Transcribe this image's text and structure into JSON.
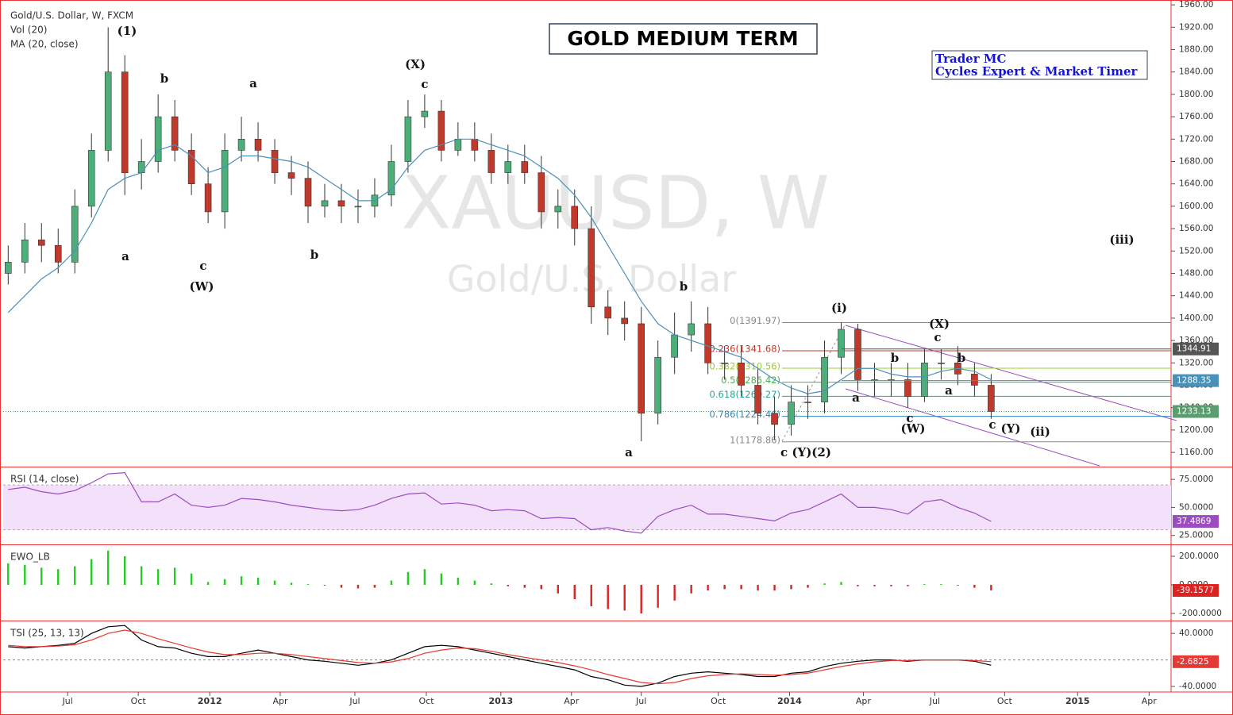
{
  "header": {
    "symbol": "Gold/U.S. Dollar, W, FXCM",
    "volume": "Vol (20)"
  },
  "watermark": {
    "symbol": "XAUUSD, W",
    "name": "Gold/U.S. Dollar"
  },
  "chart_data": [
    {
      "type": "candlestick",
      "title": "GOLD MEDIUM TERM",
      "credit": [
        "Trader MC",
        "Cycles Expert & Market Timer"
      ],
      "up_color": "#4caf7a",
      "down_color": "#c0392b",
      "open": [
        1480,
        1500,
        1540,
        1530,
        1500,
        1600,
        1700,
        1840,
        1660,
        1680,
        1760,
        1700,
        1640,
        1590,
        1700,
        1720,
        1700,
        1660,
        1650,
        1600,
        1610,
        1600,
        1600,
        1620,
        1680,
        1760,
        1770,
        1700,
        1720,
        1700,
        1660,
        1680,
        1660,
        1590,
        1600,
        1560,
        1420,
        1400,
        1390,
        1230,
        1330,
        1370,
        1390,
        1320,
        1320,
        1280,
        1230,
        1210,
        1250,
        1250,
        1330,
        1380,
        1290,
        1290,
        1290,
        1260,
        1320,
        1320,
        1300,
        1280
      ],
      "high": [
        1530,
        1570,
        1570,
        1560,
        1630,
        1730,
        1920,
        1870,
        1720,
        1800,
        1790,
        1730,
        1670,
        1730,
        1760,
        1750,
        1720,
        1690,
        1680,
        1640,
        1640,
        1630,
        1650,
        1710,
        1790,
        1800,
        1790,
        1750,
        1750,
        1730,
        1710,
        1710,
        1690,
        1630,
        1630,
        1600,
        1450,
        1430,
        1420,
        1360,
        1410,
        1430,
        1420,
        1350,
        1350,
        1310,
        1260,
        1280,
        1280,
        1360,
        1392,
        1390,
        1320,
        1320,
        1320,
        1345,
        1345,
        1350,
        1320,
        1300
      ],
      "low": [
        1460,
        1480,
        1500,
        1480,
        1480,
        1580,
        1680,
        1620,
        1630,
        1660,
        1680,
        1620,
        1570,
        1560,
        1680,
        1680,
        1640,
        1620,
        1570,
        1580,
        1570,
        1570,
        1580,
        1600,
        1660,
        1740,
        1680,
        1690,
        1680,
        1640,
        1640,
        1640,
        1560,
        1560,
        1530,
        1390,
        1370,
        1360,
        1180,
        1210,
        1300,
        1340,
        1300,
        1290,
        1260,
        1210,
        1182,
        1190,
        1220,
        1230,
        1300,
        1270,
        1260,
        1260,
        1240,
        1250,
        1290,
        1280,
        1260,
        1220
      ],
      "close": [
        1500,
        1540,
        1530,
        1500,
        1600,
        1700,
        1840,
        1660,
        1680,
        1760,
        1700,
        1640,
        1590,
        1700,
        1720,
        1700,
        1660,
        1650,
        1600,
        1610,
        1600,
        1600,
        1620,
        1680,
        1760,
        1770,
        1700,
        1720,
        1700,
        1660,
        1680,
        1660,
        1590,
        1600,
        1560,
        1420,
        1400,
        1390,
        1230,
        1330,
        1370,
        1390,
        1320,
        1320,
        1280,
        1230,
        1210,
        1250,
        1250,
        1330,
        1380,
        1290,
        1290,
        1290,
        1260,
        1320,
        1320,
        1300,
        1280,
        1233.13
      ],
      "close_color": "#5a9e6f",
      "series": [
        {
          "name": "MA (20, close)",
          "color": "#4a90b8",
          "values": [
            1410,
            1440,
            1470,
            1490,
            1520,
            1570,
            1630,
            1650,
            1660,
            1700,
            1710,
            1690,
            1660,
            1670,
            1690,
            1690,
            1685,
            1680,
            1670,
            1650,
            1630,
            1610,
            1610,
            1630,
            1670,
            1700,
            1710,
            1720,
            1720,
            1710,
            1700,
            1690,
            1670,
            1650,
            1620,
            1580,
            1530,
            1480,
            1430,
            1390,
            1370,
            1360,
            1350,
            1340,
            1330,
            1310,
            1290,
            1275,
            1265,
            1270,
            1290,
            1310,
            1310,
            1300,
            1295,
            1295,
            1305,
            1310,
            1305,
            1290
          ]
        }
      ],
      "price_levels": [
        1344.91,
        1288.35
      ],
      "price_level_colors": [
        "#555555",
        "#4a90b8"
      ],
      "fib_levels": [
        {
          "value": 1391.97,
          "label": "0(1391.97)"
        },
        {
          "value": 1341.68,
          "label": "0.236(1341.68)"
        },
        {
          "value": 1310.56,
          "label": "0.382(1310.56)"
        },
        {
          "value": 1285.42,
          "label": "0.5(1285.42)"
        },
        {
          "value": 1260.27,
          "label": "0.618(1260.27)"
        },
        {
          "value": 1224.46,
          "label": "0.786(1224.46)"
        },
        {
          "value": 1178.86,
          "label": "1(1178.86)"
        }
      ],
      "fib_colors": [
        "#888888",
        "#c0392b",
        "#9acd32",
        "#4caf50",
        "#26a69a",
        "#2e86c1",
        "#888888"
      ],
      "annotations": [
        "(1)",
        "b",
        "a",
        "(X)",
        "c",
        "a",
        "c",
        "(W)",
        "b",
        "b",
        "a",
        "(i)",
        "(X)",
        "c",
        "b",
        "b",
        "a",
        "a",
        "c",
        "(W)",
        "c",
        "(Y)",
        "(ii)",
        "c (Y)(2)",
        "(iii)"
      ],
      "ylim": [
        1136,
        1963
      ],
      "yticks": [
        {
          "value": 1160,
          "label": "1160.00"
        },
        {
          "value": 1200,
          "label": "1200.00"
        },
        {
          "value": 1240,
          "label": "1240.00"
        },
        {
          "value": 1280,
          "label": "1280.00"
        },
        {
          "value": 1320,
          "label": "1320.00"
        },
        {
          "value": 1360,
          "label": "1360.00"
        },
        {
          "value": 1400,
          "label": "1400.00"
        },
        {
          "value": 1440,
          "label": "1440.00"
        },
        {
          "value": 1480,
          "label": "1480.00"
        },
        {
          "value": 1520,
          "label": "1520.00"
        },
        {
          "value": 1560,
          "label": "1560.00"
        },
        {
          "value": 1600,
          "label": "1600.00"
        },
        {
          "value": 1640,
          "label": "1640.00"
        },
        {
          "value": 1680,
          "label": "1680.00"
        },
        {
          "value": 1720,
          "label": "1720.00"
        },
        {
          "value": 1760,
          "label": "1760.00"
        },
        {
          "value": 1800,
          "label": "1800.00"
        },
        {
          "value": 1840,
          "label": "1840.00"
        },
        {
          "value": 1880,
          "label": "1880.00"
        },
        {
          "value": 1920,
          "label": "1920.00"
        },
        {
          "value": 1960,
          "label": "1960.00"
        }
      ],
      "xlim": [
        -0.3,
        69.8
      ],
      "xticks": [
        {
          "value": 3.57,
          "label": "Jul"
        },
        {
          "value": 7.81,
          "label": "Oct"
        },
        {
          "value": 12.1,
          "label": "2012"
        },
        {
          "value": 16.33,
          "label": "Apr"
        },
        {
          "value": 20.81,
          "label": "Jul"
        },
        {
          "value": 25.1,
          "label": "Oct"
        },
        {
          "value": 29.57,
          "label": "2013"
        },
        {
          "value": 33.81,
          "label": "Apr"
        },
        {
          "value": 38,
          "label": "Jul"
        },
        {
          "value": 42.62,
          "label": "Oct"
        },
        {
          "value": 46.9,
          "label": "2014"
        },
        {
          "value": 51.33,
          "label": "Apr"
        },
        {
          "value": 55.62,
          "label": "Jul"
        },
        {
          "value": 59.81,
          "label": "Oct"
        },
        {
          "value": 64.19,
          "label": "2015"
        },
        {
          "value": 68.48,
          "label": "Apr"
        }
      ]
    },
    {
      "type": "line",
      "title": "RSI (14, close)",
      "band": [
        30,
        70
      ],
      "band_color": "#f3e0fb",
      "series": [
        {
          "color": "#9b4dbf",
          "values": [
            66,
            68,
            64,
            62,
            65,
            72,
            80,
            81,
            55,
            55,
            62,
            52,
            50,
            52,
            58,
            57,
            55,
            52,
            50,
            48,
            47,
            48,
            52,
            58,
            62,
            63,
            53,
            54,
            52,
            47,
            48,
            47,
            40,
            41,
            40,
            30,
            32,
            29,
            27,
            42,
            48,
            52,
            44,
            44,
            42,
            40,
            38,
            45,
            48,
            55,
            62,
            50,
            50,
            48,
            44,
            55,
            57,
            50,
            45,
            37.4869
          ]
        }
      ],
      "ylim": [
        17,
        85
      ],
      "yticks": [
        {
          "value": 75,
          "label": "75.0000"
        },
        {
          "value": 50,
          "label": "50.0000"
        },
        {
          "value": 25,
          "label": "25.0000"
        }
      ]
    },
    {
      "type": "bar",
      "title": "EWO_LB",
      "up_color": "#22cc22",
      "down_color": "#dd2222",
      "values": [
        150,
        140,
        120,
        110,
        130,
        180,
        240,
        200,
        130,
        110,
        120,
        80,
        20,
        40,
        60,
        50,
        30,
        15,
        5,
        -5,
        -20,
        -25,
        -20,
        30,
        90,
        110,
        80,
        50,
        30,
        10,
        -10,
        -20,
        -30,
        -60,
        -100,
        -150,
        -170,
        -180,
        -200,
        -160,
        -110,
        -60,
        -40,
        -30,
        -30,
        -40,
        -40,
        -30,
        -20,
        10,
        20,
        -10,
        -10,
        -10,
        -10,
        5,
        5,
        -5,
        -20,
        -39.1577
      ],
      "ylim": [
        -250,
        272
      ],
      "yticks": [
        {
          "value": 200,
          "label": "200.0000"
        },
        {
          "value": 0,
          "label": "0.0000"
        },
        {
          "value": -200,
          "label": "-200.0000"
        }
      ]
    },
    {
      "type": "line",
      "title": "TSI (25, 13, 13)",
      "series": [
        {
          "color": "#000000",
          "values": [
            20,
            18,
            20,
            22,
            25,
            40,
            50,
            52,
            30,
            20,
            18,
            10,
            5,
            5,
            10,
            15,
            10,
            5,
            0,
            -2,
            -5,
            -8,
            -5,
            0,
            10,
            20,
            22,
            20,
            15,
            10,
            5,
            0,
            -5,
            -10,
            -15,
            -25,
            -30,
            -38,
            -40,
            -35,
            -25,
            -20,
            -18,
            -20,
            -22,
            -25,
            -25,
            -20,
            -18,
            -10,
            -5,
            -2,
            0,
            0,
            -2,
            0,
            0,
            0,
            -2,
            -8
          ]
        },
        {
          "color": "#e53935",
          "values": [
            22,
            20,
            20,
            21,
            23,
            30,
            40,
            45,
            40,
            32,
            25,
            18,
            12,
            8,
            8,
            10,
            10,
            8,
            5,
            2,
            -1,
            -4,
            -5,
            -3,
            2,
            10,
            15,
            18,
            17,
            13,
            8,
            4,
            0,
            -4,
            -9,
            -15,
            -22,
            -28,
            -34,
            -36,
            -34,
            -28,
            -24,
            -22,
            -21,
            -22,
            -23,
            -22,
            -20,
            -15,
            -10,
            -6,
            -3,
            -1,
            -1,
            0,
            0,
            0,
            -1,
            -2.6825
          ]
        }
      ],
      "ylim": [
        -46,
        57
      ],
      "yticks": [
        {
          "value": 40,
          "label": "40.0000"
        },
        {
          "value": -40,
          "label": "-40.0000"
        }
      ]
    }
  ]
}
